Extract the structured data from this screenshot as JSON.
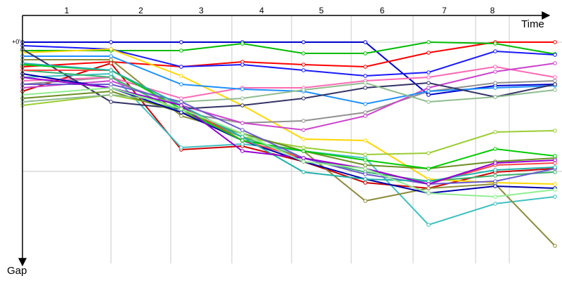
{
  "chart_data": {
    "type": "line",
    "x_label": "Time",
    "y_label": "Gap",
    "xlim": [
      0,
      768
    ],
    "ylim": [
      -38,
      315
    ],
    "x": [
      0,
      126,
      226,
      313,
      400,
      488,
      578,
      673,
      758
    ],
    "lap_labels": [
      "1",
      "2",
      "3",
      "4",
      "5",
      "6",
      "7",
      "8"
    ],
    "lap_boundaries": [
      126,
      211,
      298,
      383,
      468,
      556,
      645,
      693
    ],
    "yticks": [
      {
        "value": 0,
        "label": "+0'"
      }
    ],
    "grid_y": [
      0,
      184
    ],
    "series": [
      {
        "color": "#0000cc",
        "values": [
          0,
          0,
          0,
          0,
          0,
          0,
          75,
          62,
          60
        ]
      },
      {
        "color": "#ff0000",
        "values": [
          35,
          28,
          35,
          28,
          32,
          35,
          15,
          0,
          0
        ]
      },
      {
        "color": "#00bb00",
        "values": [
          12,
          12,
          12,
          2,
          16,
          16,
          0,
          2,
          17
        ]
      },
      {
        "color": "#1a1aff",
        "values": [
          5,
          10,
          35,
          32,
          40,
          48,
          43,
          13,
          18
        ]
      },
      {
        "color": "#cc0000",
        "values": [
          70,
          30,
          153,
          148,
          170,
          200,
          208,
          185,
          180
        ]
      },
      {
        "color": "#40c0c0",
        "values": [
          50,
          45,
          150,
          145,
          155,
          165,
          260,
          230,
          220
        ]
      },
      {
        "color": "#ffd700",
        "values": [
          15,
          10,
          48,
          90,
          138,
          140,
          195,
          200,
          202
        ]
      },
      {
        "color": "#909090",
        "values": [
          60,
          50,
          100,
          115,
          112,
          100,
          70,
          58,
          55
        ]
      },
      {
        "color": "#9acd32",
        "values": [
          90,
          75,
          95,
          135,
          150,
          160,
          158,
          128,
          126
        ]
      },
      {
        "color": "#8b8b3c",
        "values": [
          25,
          25,
          105,
          130,
          155,
          226,
          208,
          202,
          290
        ]
      },
      {
        "color": "#ff69b4",
        "values": [
          55,
          50,
          80,
          65,
          65,
          55,
          50,
          35,
          50
        ]
      },
      {
        "color": "#cc44cc",
        "values": [
          65,
          55,
          90,
          115,
          125,
          105,
          65,
          42,
          30
        ]
      },
      {
        "color": "#1e90ff",
        "values": [
          20,
          20,
          60,
          67,
          70,
          88,
          70,
          65,
          62
        ]
      },
      {
        "color": "#333366",
        "values": [
          10,
          85,
          95,
          90,
          80,
          65,
          58,
          78,
          60
        ]
      },
      {
        "color": "#3cb371",
        "values": [
          40,
          50,
          100,
          135,
          165,
          185,
          198,
          190,
          185
        ]
      },
      {
        "color": "#6b8e23",
        "values": [
          80,
          70,
          100,
          130,
          155,
          175,
          180,
          170,
          165
        ]
      },
      {
        "color": "#0000aa",
        "values": [
          45,
          65,
          100,
          140,
          170,
          195,
          215,
          205,
          208
        ]
      },
      {
        "color": "#ff4444",
        "values": [
          40,
          40,
          90,
          140,
          165,
          180,
          202,
          175,
          172
        ]
      },
      {
        "color": "#00cc00",
        "values": [
          32,
          40,
          95,
          140,
          155,
          168,
          180,
          152,
          162
        ]
      },
      {
        "color": "#8fbc8f",
        "values": [
          85,
          75,
          85,
          80,
          68,
          58,
          85,
          78,
          68
        ]
      },
      {
        "color": "#6a5acd",
        "values": [
          60,
          60,
          85,
          125,
          165,
          188,
          202,
          198,
          180
        ]
      },
      {
        "color": "#20b2aa",
        "values": [
          30,
          40,
          90,
          135,
          185,
          195,
          198,
          182,
          178
        ]
      },
      {
        "color": "#9400d3",
        "values": [
          50,
          65,
          90,
          155,
          165,
          180,
          202,
          172,
          168
        ]
      },
      {
        "color": "#90ee90",
        "values": [
          75,
          65,
          95,
          130,
          170,
          180,
          215,
          220,
          210
        ]
      }
    ]
  }
}
